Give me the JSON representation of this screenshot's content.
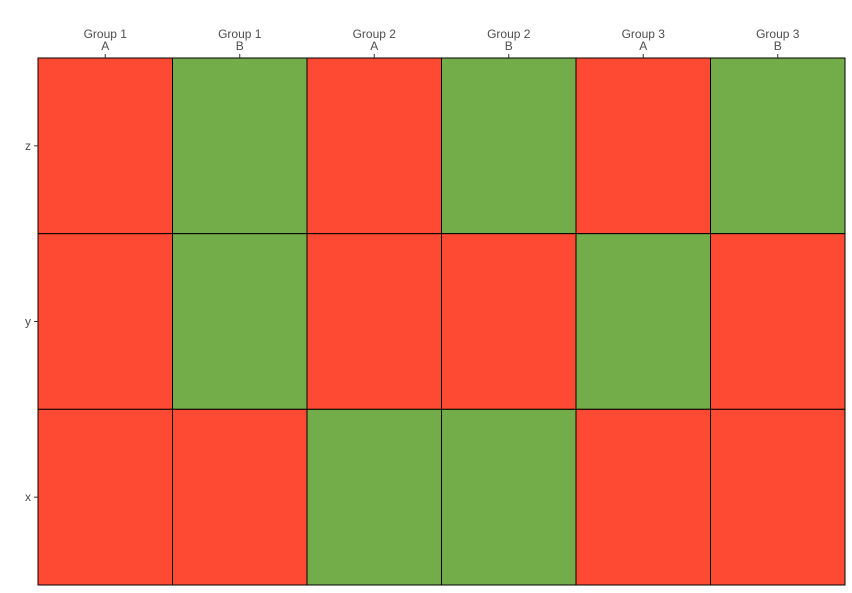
{
  "chart_data": {
    "type": "heatmap",
    "title": "",
    "xlabel": "",
    "ylabel": "",
    "columns": [
      {
        "group": "Group 1",
        "sub": "A"
      },
      {
        "group": "Group 1",
        "sub": "B"
      },
      {
        "group": "Group 2",
        "sub": "A"
      },
      {
        "group": "Group 2",
        "sub": "B"
      },
      {
        "group": "Group 3",
        "sub": "A"
      },
      {
        "group": "Group 3",
        "sub": "B"
      }
    ],
    "rows": [
      "z",
      "y",
      "x"
    ],
    "values": [
      [
        "red",
        "green",
        "red",
        "green",
        "red",
        "green"
      ],
      [
        "red",
        "green",
        "red",
        "red",
        "green",
        "red"
      ],
      [
        "red",
        "red",
        "green",
        "green",
        "red",
        "red"
      ]
    ],
    "colors": {
      "red": "#ff4a33",
      "green": "#73ad4a"
    },
    "legend": "none",
    "grid": false
  }
}
